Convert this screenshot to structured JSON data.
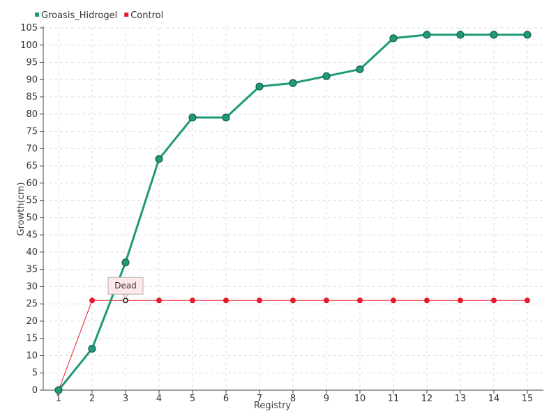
{
  "chart_data": {
    "type": "line",
    "categories": [
      "1",
      "2",
      "3",
      "4",
      "5",
      "6",
      "7",
      "8",
      "9",
      "10",
      "11",
      "12",
      "13",
      "14",
      "15"
    ],
    "series": [
      {
        "name": "Groasis_Hidrogel",
        "color": "#1f9a78",
        "values": [
          0,
          12,
          37,
          67,
          79,
          79,
          88,
          89,
          91,
          93,
          102,
          103,
          103,
          103,
          103
        ]
      },
      {
        "name": "Control",
        "color": "#e8192c",
        "values": [
          0,
          26,
          26,
          26,
          26,
          26,
          26,
          26,
          26,
          26,
          26,
          26,
          26,
          26,
          26
        ]
      }
    ],
    "xlabel": "Registry",
    "ylabel": "Growth(cm)",
    "ylim": [
      0,
      105
    ],
    "yticks": [
      0,
      5,
      10,
      15,
      20,
      25,
      30,
      35,
      40,
      45,
      50,
      55,
      60,
      65,
      70,
      75,
      80,
      85,
      90,
      95,
      100,
      105
    ],
    "grid": true,
    "legend_position": "top-left",
    "annotations": [
      {
        "text": "Dead",
        "series": "Control",
        "category": "3",
        "value": 26
      }
    ]
  }
}
